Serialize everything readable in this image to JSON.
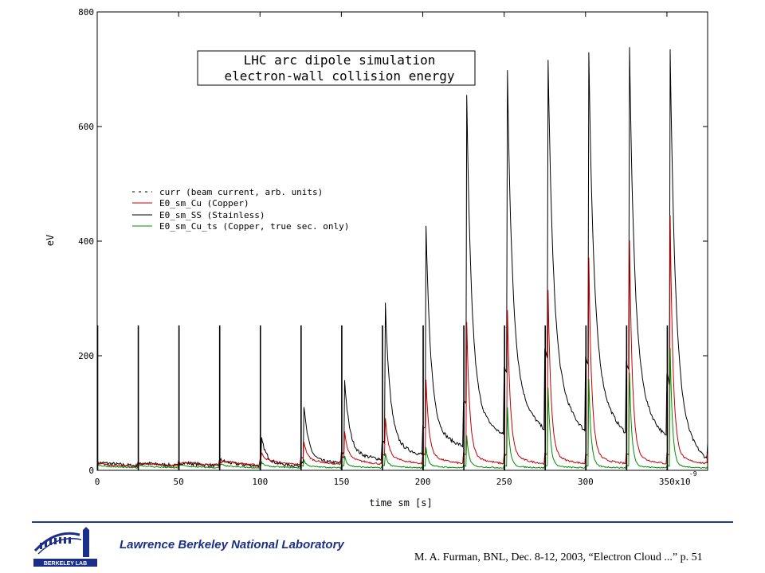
{
  "colors": {
    "current": "#000000",
    "copper": "#c00000",
    "stainless": "#000000",
    "copper_ts": "#008c00",
    "brand_blue": "#1b2f8a"
  },
  "chart_data": {
    "type": "line",
    "title_lines": [
      "LHC arc dipole simulation",
      "electron-wall collision energy"
    ],
    "xlabel": "time sm [s]",
    "ylabel": "eV",
    "x_multiplier_label": "x10",
    "x_multiplier_exp": "-9",
    "xlim": [
      0,
      375
    ],
    "ylim": [
      0,
      800
    ],
    "x_ticks": [
      0,
      50,
      100,
      150,
      200,
      250,
      300
    ],
    "x_tick_labels": [
      "0",
      "50",
      "100",
      "150",
      "200",
      "250",
      "300"
    ],
    "x_last_tick_label": "350",
    "y_ticks": [
      0,
      200,
      400,
      600,
      800
    ],
    "y_tick_labels": [
      "0",
      "200",
      "400",
      "600",
      "800"
    ],
    "grid": false,
    "legend_position": "upper-left",
    "bunch_times": [
      0,
      25,
      50,
      75,
      100,
      125,
      150,
      175,
      200,
      225,
      250,
      275,
      300,
      325,
      350
    ],
    "current_peak": 253,
    "series": [
      {
        "name": "curr (beam current, arb. units)",
        "style": "dashed",
        "color_key": "current",
        "description_values": "spike of 253 at each bunch time"
      },
      {
        "name": "E0_sm_Cu (Copper)",
        "color_key": "copper",
        "peaks": [
          [
            0,
            12
          ],
          [
            26,
            10
          ],
          [
            51,
            12
          ],
          [
            76,
            14
          ],
          [
            101,
            30
          ],
          [
            127,
            50
          ],
          [
            152,
            68
          ],
          [
            177,
            92
          ],
          [
            202,
            158
          ],
          [
            227,
            260
          ],
          [
            252,
            280
          ],
          [
            277,
            315
          ],
          [
            302,
            370
          ],
          [
            327,
            403
          ],
          [
            352,
            445
          ]
        ]
      },
      {
        "name": "E0_sm_SS (Stainless)",
        "color_key": "stainless",
        "peaks": [
          [
            0,
            12
          ],
          [
            26,
            10
          ],
          [
            51,
            12
          ],
          [
            76,
            18
          ],
          [
            101,
            55
          ],
          [
            127,
            112
          ],
          [
            152,
            158
          ],
          [
            177,
            290
          ],
          [
            202,
            425
          ],
          [
            227,
            655
          ],
          [
            252,
            698
          ],
          [
            277,
            718
          ],
          [
            302,
            730
          ],
          [
            327,
            737
          ],
          [
            352,
            737
          ]
        ],
        "tail_levels": [
          [
            125,
            10
          ],
          [
            150,
            25
          ],
          [
            175,
            45
          ],
          [
            200,
            70
          ],
          [
            225,
            115
          ],
          [
            250,
            175
          ],
          [
            275,
            205
          ],
          [
            300,
            195
          ],
          [
            325,
            185
          ],
          [
            350,
            165
          ],
          [
            375,
            45
          ]
        ]
      },
      {
        "name": "E0_sm_Cu_ts (Copper, true sec. only)",
        "color_key": "copper_ts",
        "peaks": [
          [
            0,
            10
          ],
          [
            26,
            9
          ],
          [
            51,
            10
          ],
          [
            76,
            11
          ],
          [
            101,
            14
          ],
          [
            127,
            18
          ],
          [
            152,
            25
          ],
          [
            177,
            30
          ],
          [
            202,
            40
          ],
          [
            227,
            60
          ],
          [
            252,
            110
          ],
          [
            277,
            145
          ],
          [
            302,
            160
          ],
          [
            327,
            170
          ],
          [
            352,
            215
          ]
        ]
      }
    ]
  },
  "footer": {
    "lab_name": "Lawrence Berkeley National Laboratory",
    "citation": "M. A. Furman, BNL, Dec. 8-12, 2003, “Electron Cloud ...”  p. 51",
    "logo_text": "BERKELEY LAB"
  }
}
